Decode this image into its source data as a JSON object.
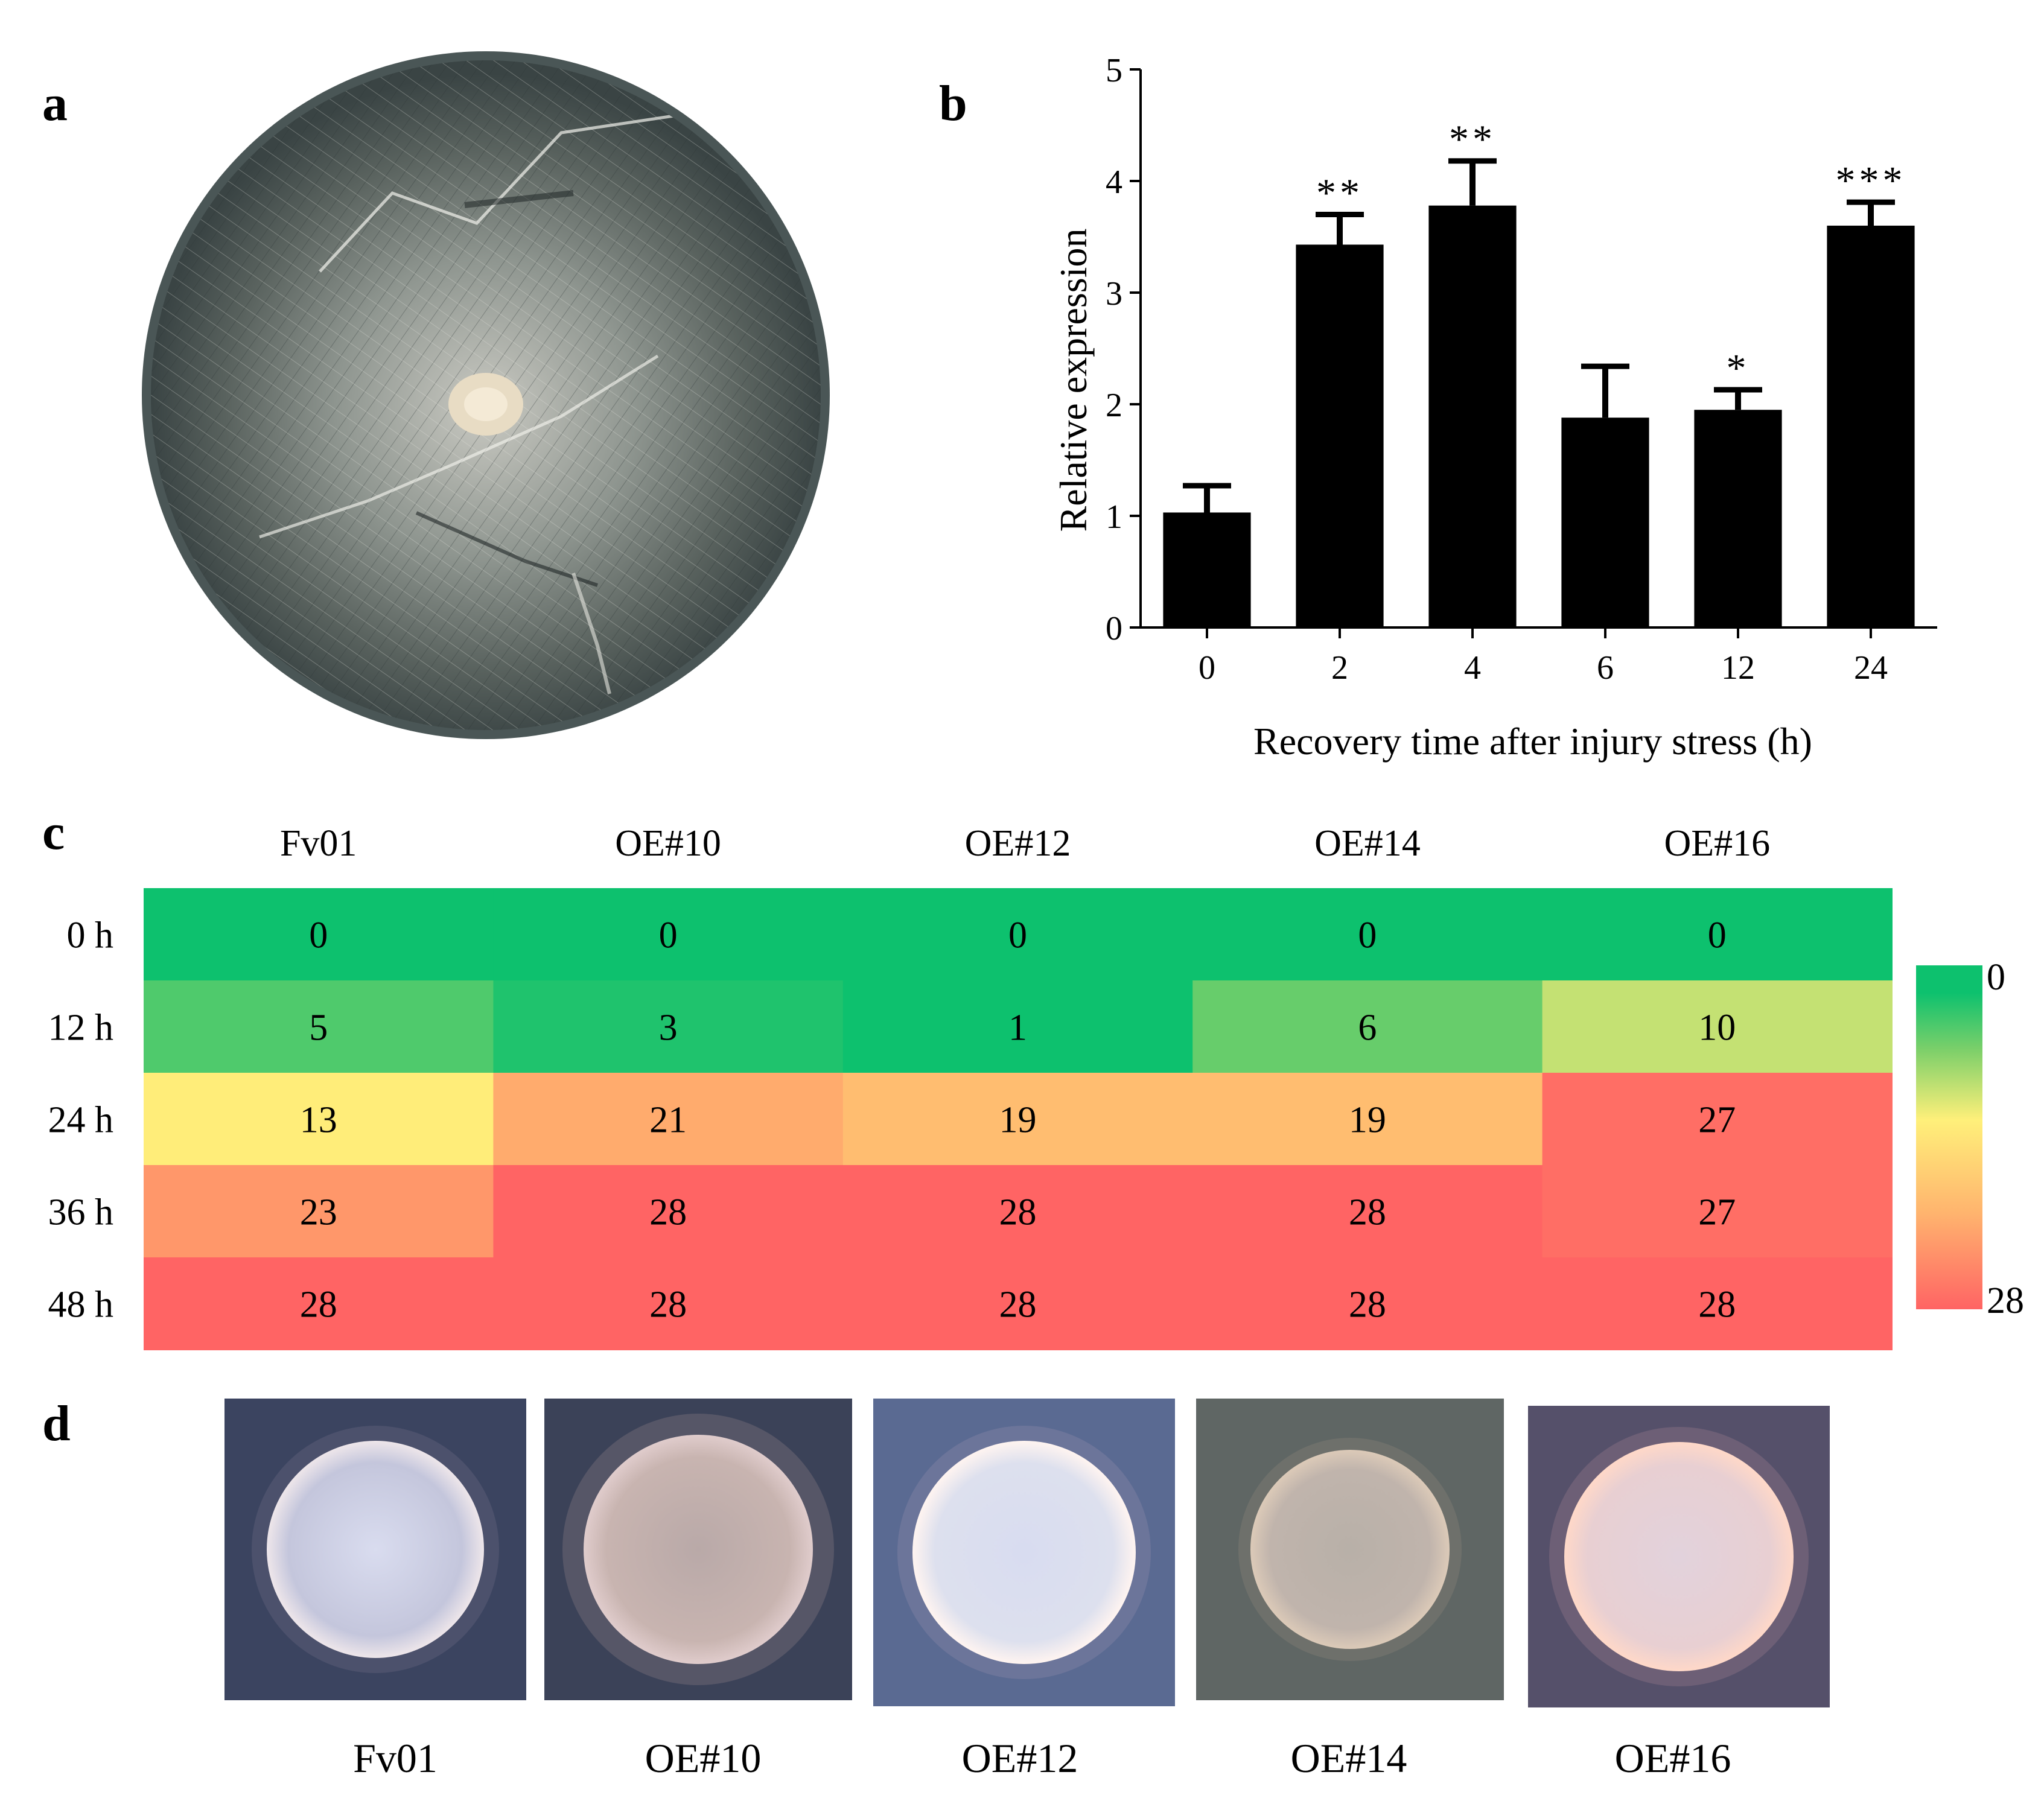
{
  "panels": {
    "a": "a",
    "b": "b",
    "c": "c",
    "d": "d"
  },
  "chart_data": [
    {
      "type": "bar",
      "panel": "b",
      "xlabel": "Recovery time after injury stress (h)",
      "ylabel": "Relative expression",
      "ylim": [
        0,
        5
      ],
      "yticks": [
        "0",
        "1",
        "2",
        "3",
        "4",
        "5"
      ],
      "categories": [
        "0",
        "2",
        "4",
        "6",
        "12",
        "24"
      ],
      "values": [
        1.03,
        3.43,
        3.78,
        1.88,
        1.95,
        3.6
      ],
      "errors": [
        0.24,
        0.27,
        0.4,
        0.46,
        0.18,
        0.21
      ],
      "significance": [
        "",
        "**",
        "**",
        "",
        "*",
        "***"
      ],
      "bar_color": "#000000"
    },
    {
      "type": "heatmap",
      "panel": "c",
      "columns": [
        "Fv01",
        "OE#10",
        "OE#12",
        "OE#14",
        "OE#16"
      ],
      "rows": [
        "0 h",
        "12 h",
        "24 h",
        "36 h",
        "48 h"
      ],
      "values": [
        [
          0,
          0,
          0,
          0,
          0
        ],
        [
          5,
          3,
          1,
          6,
          10
        ],
        [
          13,
          21,
          19,
          19,
          27
        ],
        [
          23,
          28,
          28,
          28,
          27
        ],
        [
          28,
          28,
          28,
          28,
          28
        ]
      ],
      "colorbar": {
        "min_label": "0",
        "max_label": "28",
        "min": 0,
        "max": 28
      },
      "colors": {
        "low": "#0dc16e",
        "mid": "#fff07a",
        "high": "#ff6464"
      }
    }
  ],
  "photos": {
    "plate": "culture-plate-photo",
    "colonies": [
      "Fv01",
      "OE#10",
      "OE#12",
      "OE#14",
      "OE#16"
    ]
  }
}
